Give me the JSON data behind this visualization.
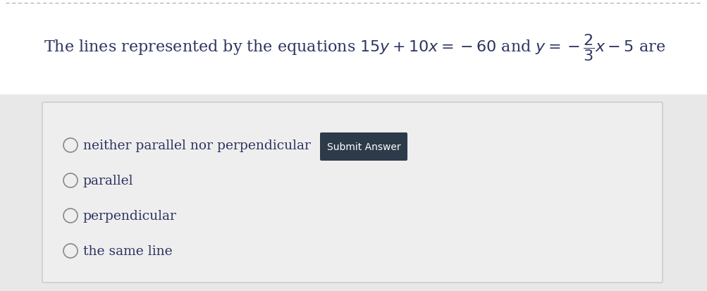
{
  "top_bg": "#ffffff",
  "bottom_bg": "#e8e8e8",
  "panel_bg": "#eeeeee",
  "panel_border": "#c8c8cc",
  "text_color": "#2d3561",
  "dashed_line_color": "#b0b0b0",
  "button_bg": "#2d3a4a",
  "button_text_color": "#ffffff",
  "button_text": "Submit Answer",
  "options": [
    "neither parallel nor perpendicular",
    "parallel",
    "perpendicular",
    "the same line"
  ],
  "circle_color": "#888888",
  "title_fontsize": 16,
  "option_fontsize": 13.5,
  "btn_fontsize": 10
}
